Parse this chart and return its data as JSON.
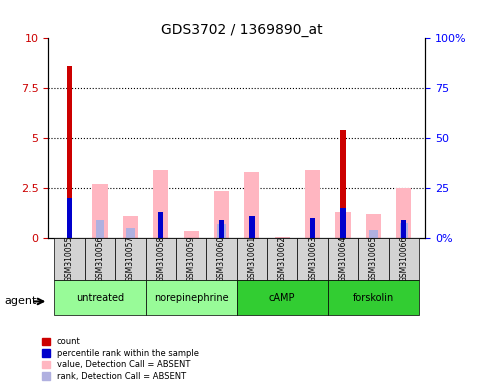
{
  "title": "GDS3702 / 1369890_at",
  "samples": [
    "GSM310055",
    "GSM310056",
    "GSM310057",
    "GSM310058",
    "GSM310059",
    "GSM310060",
    "GSM310061",
    "GSM310062",
    "GSM310063",
    "GSM310064",
    "GSM310065",
    "GSM310066"
  ],
  "red_bars": [
    8.6,
    0,
    0,
    0,
    0,
    0,
    0,
    0,
    0,
    5.4,
    0,
    0
  ],
  "pink_bars": [
    0,
    2.7,
    1.1,
    3.4,
    0.35,
    2.35,
    3.3,
    0.05,
    3.4,
    1.3,
    1.2,
    2.5
  ],
  "blue_bars": [
    2.0,
    0,
    0,
    1.3,
    0,
    0.9,
    1.1,
    0,
    1.0,
    1.5,
    0,
    0.9
  ],
  "lavender_bars": [
    0,
    0.9,
    0.5,
    0,
    0,
    0.7,
    0,
    0,
    0,
    0,
    0.4,
    0.75
  ],
  "groups": [
    {
      "label": "untreated",
      "start": 0,
      "end": 2,
      "color": "#90EE90"
    },
    {
      "label": "norepinephrine",
      "start": 3,
      "end": 5,
      "color": "#90EE90"
    },
    {
      "label": "cAMP",
      "start": 6,
      "end": 8,
      "color": "#32CD32"
    },
    {
      "label": "forskolin",
      "start": 9,
      "end": 11,
      "color": "#32CD32"
    }
  ],
  "ylim_left": [
    0,
    10
  ],
  "ylim_right": [
    0,
    100
  ],
  "yticks_left": [
    0,
    2.5,
    5,
    7.5,
    10
  ],
  "yticks_right": [
    0,
    25,
    50,
    75,
    100
  ],
  "yticklabels_left": [
    "0",
    "2.5",
    "5",
    "7.5",
    "10"
  ],
  "yticklabels_right": [
    "0%",
    "25",
    "50",
    "75",
    "100%"
  ],
  "bar_width": 0.5,
  "red_color": "#CC0000",
  "pink_color": "#FFB6C1",
  "blue_color": "#0000CC",
  "lavender_color": "#B0B0E0",
  "legend_items": [
    {
      "color": "#CC0000",
      "label": "count"
    },
    {
      "color": "#0000CC",
      "label": "percentile rank within the sample"
    },
    {
      "color": "#FFB6C1",
      "label": "value, Detection Call = ABSENT"
    },
    {
      "color": "#B0B0E0",
      "label": "rank, Detection Call = ABSENT"
    }
  ],
  "agent_label": "agent",
  "grid_color": "black",
  "grid_style": "dotted"
}
